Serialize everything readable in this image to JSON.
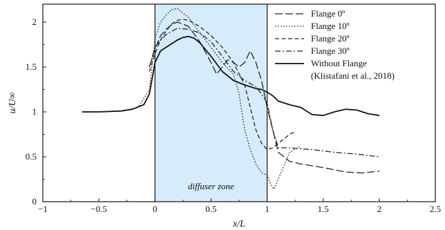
{
  "chart_data": {
    "type": "line",
    "xlabel": "x/L",
    "ylabel": "u/U∞",
    "xlim": [
      -1,
      2.5
    ],
    "ylim": [
      0,
      2.2
    ],
    "xticks": [
      -1,
      -0.5,
      0,
      0.5,
      1,
      1.5,
      2,
      2.5
    ],
    "xtick_labels": [
      "−1",
      "−0.5",
      "0",
      "0.5",
      "1",
      "1.5",
      "2",
      "2.5"
    ],
    "yticks": [
      0,
      0.5,
      1,
      1.5,
      2
    ],
    "ytick_labels": [
      "0",
      "0.5",
      "1",
      "1.5",
      "2"
    ],
    "grid": false,
    "legend_position": "top-right",
    "annotations": [
      {
        "text": "diffuser zone",
        "x_range": [
          0,
          1
        ],
        "color": "#d6ecfb"
      }
    ],
    "series": [
      {
        "name": "Flange 0º",
        "style": "long-dash",
        "color": "#222222",
        "x": [
          -0.05,
          0,
          0.05,
          0.1,
          0.15,
          0.2,
          0.25,
          0.3,
          0.4,
          0.5,
          0.55,
          0.6,
          0.65,
          0.7,
          0.75,
          0.8,
          0.85,
          0.9,
          0.95,
          1.0,
          1.05,
          1.1,
          1.2,
          1.3,
          1.5,
          1.7,
          1.85,
          2.0
        ],
        "y": [
          1.5,
          1.7,
          1.85,
          1.92,
          1.97,
          2.0,
          1.98,
          1.95,
          1.78,
          1.55,
          1.42,
          1.5,
          1.58,
          1.55,
          1.5,
          1.55,
          1.68,
          1.55,
          1.35,
          1.05,
          0.8,
          0.55,
          0.45,
          0.42,
          0.38,
          0.33,
          0.32,
          0.34
        ]
      },
      {
        "name": "Flange 10º",
        "style": "dotted",
        "color": "#222222",
        "x": [
          -0.65,
          -0.5,
          -0.3,
          -0.15,
          -0.05,
          0,
          0.05,
          0.1,
          0.15,
          0.2,
          0.25,
          0.3,
          0.4,
          0.5,
          0.6,
          0.7,
          0.75,
          0.8,
          0.85,
          0.9,
          0.95,
          1.0,
          1.03,
          1.06,
          1.1,
          1.2,
          1.3
        ],
        "y": [
          1.0,
          1.0,
          1.01,
          1.05,
          1.25,
          1.82,
          2.0,
          2.08,
          2.14,
          2.15,
          2.1,
          2.05,
          1.88,
          1.72,
          1.55,
          1.42,
          1.2,
          0.8,
          0.58,
          0.42,
          0.32,
          0.3,
          0.2,
          0.14,
          0.25,
          0.55,
          0.62
        ]
      },
      {
        "name": "Flange 20º",
        "style": "short-dash",
        "color": "#222222",
        "x": [
          -0.05,
          0,
          0.05,
          0.1,
          0.15,
          0.2,
          0.25,
          0.3,
          0.4,
          0.5,
          0.6,
          0.7,
          0.8,
          0.85,
          0.9,
          0.95,
          1.0,
          1.05,
          1.1,
          1.15,
          1.2,
          1.25
        ],
        "y": [
          1.45,
          1.65,
          1.8,
          1.9,
          1.98,
          2.02,
          2.03,
          2.02,
          1.95,
          1.85,
          1.72,
          1.55,
          1.3,
          1.05,
          0.8,
          0.65,
          0.58,
          0.6,
          0.65,
          0.7,
          0.75,
          0.78
        ]
      },
      {
        "name": "Flange 30º",
        "style": "dash-dot",
        "color": "#222222",
        "x": [
          -0.05,
          0,
          0.05,
          0.1,
          0.15,
          0.2,
          0.3,
          0.4,
          0.5,
          0.6,
          0.7,
          0.8,
          0.9,
          0.95,
          1.0,
          1.05,
          1.1,
          1.2,
          1.4,
          1.6,
          1.8,
          2.0
        ],
        "y": [
          1.5,
          1.72,
          1.8,
          1.86,
          1.9,
          1.93,
          1.92,
          1.88,
          1.78,
          1.62,
          1.45,
          1.35,
          1.28,
          1.2,
          1.1,
          0.8,
          0.6,
          0.6,
          0.58,
          0.55,
          0.53,
          0.5
        ]
      },
      {
        "name": "Without Flange",
        "style": "solid",
        "color": "#111111",
        "x": [
          -0.65,
          -0.5,
          -0.3,
          -0.2,
          -0.1,
          -0.05,
          0,
          0.05,
          0.1,
          0.15,
          0.2,
          0.25,
          0.3,
          0.35,
          0.4,
          0.5,
          0.6,
          0.7,
          0.8,
          0.9,
          0.95,
          1.0,
          1.05,
          1.1,
          1.2,
          1.3,
          1.4,
          1.5,
          1.6,
          1.7,
          1.8,
          1.9,
          2.0
        ],
        "y": [
          1.0,
          1.0,
          1.01,
          1.03,
          1.08,
          1.2,
          1.55,
          1.68,
          1.72,
          1.76,
          1.8,
          1.83,
          1.84,
          1.82,
          1.77,
          1.62,
          1.45,
          1.35,
          1.3,
          1.26,
          1.25,
          1.22,
          1.18,
          1.12,
          1.08,
          1.05,
          0.97,
          0.96,
          1.0,
          1.03,
          1.02,
          0.98,
          0.96
        ]
      }
    ],
    "legend_citation": "(Klistafani et al., 2018)"
  }
}
